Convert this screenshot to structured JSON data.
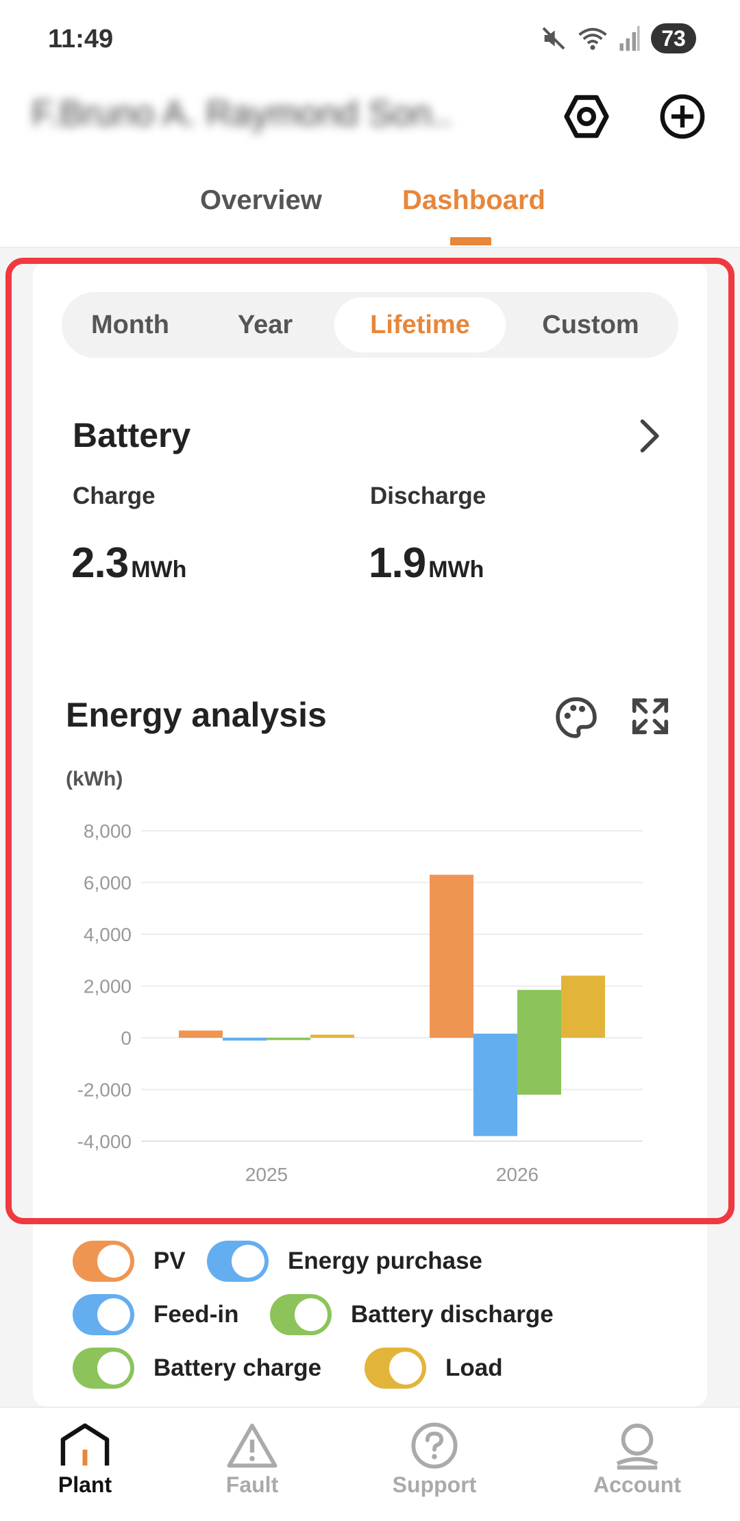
{
  "status_bar": {
    "time": "11:49",
    "battery_level": "73",
    "icons": [
      "mute-icon",
      "wifi-icon",
      "signal-icon",
      "battery-icon"
    ]
  },
  "header": {
    "plant_name": "F.Bruno A. Raymond Son..",
    "actions": [
      "settings-icon",
      "add-icon"
    ]
  },
  "top_tabs": {
    "items": [
      {
        "label": "Overview",
        "active": false
      },
      {
        "label": "Dashboard",
        "active": true
      }
    ]
  },
  "period_tabs": {
    "items": [
      {
        "label": "Month",
        "active": false
      },
      {
        "label": "Year",
        "active": false
      },
      {
        "label": "Lifetime",
        "active": true
      },
      {
        "label": "Custom",
        "active": false
      }
    ]
  },
  "battery": {
    "title": "Battery",
    "charge_label": "Charge",
    "charge_value": "2.3",
    "charge_unit": "MWh",
    "discharge_label": "Discharge",
    "discharge_value": "1.9",
    "discharge_unit": "MWh"
  },
  "energy_analysis": {
    "title": "Energy analysis",
    "unit_label": "(kWh)",
    "icons": [
      "palette-icon",
      "expand-icon"
    ]
  },
  "chart_data": {
    "type": "bar",
    "categories": [
      "2025",
      "2026"
    ],
    "ylabel": "(kWh)",
    "ylim": [
      -4000,
      8000
    ],
    "yticks": [
      8000,
      6000,
      4000,
      2000,
      0,
      -2000,
      -4000
    ],
    "ytick_labels": [
      "8,000",
      "6,000",
      "4,000",
      "2,000",
      "0",
      "-2,000",
      "-4,000"
    ],
    "grid": true,
    "series": [
      {
        "name": "PV",
        "color": "#ef9552",
        "slot": 0,
        "values": [
          280,
          6300
        ]
      },
      {
        "name": "Energy purchase",
        "color": "#64aef0",
        "slot": 1,
        "values": [
          0,
          160
        ]
      },
      {
        "name": "Feed-in",
        "color": "#64aef0",
        "slot": 1,
        "values": [
          -110,
          -3800
        ]
      },
      {
        "name": "Battery discharge",
        "color": "#8cc35a",
        "slot": 2,
        "values": [
          0,
          1850
        ]
      },
      {
        "name": "Battery charge",
        "color": "#8cc35a",
        "slot": 2,
        "values": [
          -90,
          -2200
        ]
      },
      {
        "name": "Load",
        "color": "#e2b43a",
        "slot": 3,
        "values": [
          120,
          2400
        ]
      }
    ]
  },
  "legend": {
    "items": [
      {
        "label": "PV",
        "color": "#ef9552"
      },
      {
        "label": "Energy purchase",
        "color": "#64aef0"
      },
      {
        "label": "Feed-in",
        "color": "#64aef0"
      },
      {
        "label": "Battery discharge",
        "color": "#8cc35a"
      },
      {
        "label": "Battery charge",
        "color": "#8cc35a"
      },
      {
        "label": "Load",
        "color": "#e2b43a"
      }
    ]
  },
  "bottom_nav": {
    "items": [
      {
        "label": "Plant",
        "icon": "home-icon",
        "active": true
      },
      {
        "label": "Fault",
        "icon": "warning-icon",
        "active": false
      },
      {
        "label": "Support",
        "icon": "help-icon",
        "active": false
      },
      {
        "label": "Account",
        "icon": "account-icon",
        "active": false
      }
    ]
  }
}
